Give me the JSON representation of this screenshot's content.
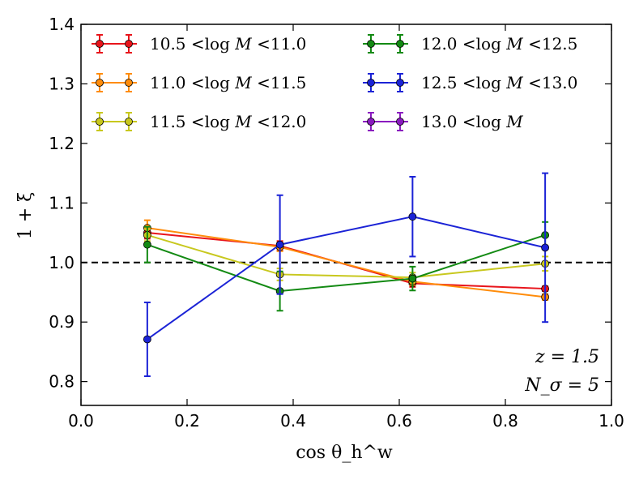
{
  "chart_data": {
    "type": "line",
    "title": "",
    "xlabel": "cos θ_h^w",
    "ylabel": "1 + ξ",
    "xlim": [
      0.0,
      1.0
    ],
    "ylim": [
      0.76,
      1.4
    ],
    "x_ticks": [
      0.0,
      0.2,
      0.4,
      0.6,
      0.8,
      1.0
    ],
    "x_tick_labels": [
      "0.0",
      "0.2",
      "0.4",
      "0.6",
      "0.8",
      "1.0"
    ],
    "y_ticks": [
      0.8,
      0.9,
      1.0,
      1.1,
      1.2,
      1.3,
      1.4
    ],
    "y_tick_labels": [
      "0.8",
      "0.9",
      "1.0",
      "1.1",
      "1.2",
      "1.3",
      "1.4"
    ],
    "reference_line": {
      "y": 1.0,
      "style": "dashed",
      "color": "#000000"
    },
    "annotations": [
      "z = 1.5",
      "N_σ = 5"
    ],
    "series": [
      {
        "name": "10.5 < log M < 11.0",
        "legend_parts": [
          "10.5",
          "<log",
          "M",
          "<11.0"
        ],
        "color": "#e8141b",
        "x": [
          0.125,
          0.375,
          0.625,
          0.875
        ],
        "y": [
          1.05,
          1.028,
          0.965,
          0.956
        ],
        "yerr": [
          0.01,
          0.008,
          0.006,
          0.004
        ]
      },
      {
        "name": "11.0 < log M < 11.5",
        "legend_parts": [
          "11.0",
          "<log",
          "M",
          "<11.5"
        ],
        "color": "#ff8c0a",
        "x": [
          0.125,
          0.375,
          0.625,
          0.875
        ],
        "y": [
          1.058,
          1.026,
          0.968,
          0.942
        ],
        "yerr": [
          0.013,
          0.007,
          0.006,
          0.005
        ]
      },
      {
        "name": "11.5 < log M < 12.0",
        "legend_parts": [
          "11.5",
          "<log",
          "M",
          "<12.0"
        ],
        "color": "#c8c81e",
        "x": [
          0.125,
          0.375,
          0.625,
          0.875
        ],
        "y": [
          1.046,
          0.98,
          0.975,
          0.998
        ],
        "yerr": [
          0.01,
          0.01,
          0.008,
          0.012
        ]
      },
      {
        "name": "12.0 < log M < 12.5",
        "legend_parts": [
          "12.0",
          "<log",
          "M",
          "<12.5"
        ],
        "color": "#138a13",
        "x": [
          0.125,
          0.375,
          0.625,
          0.875
        ],
        "y": [
          1.03,
          0.952,
          0.973,
          1.046
        ],
        "yerr": [
          0.03,
          0.033,
          0.02,
          0.022
        ]
      },
      {
        "name": "12.5 < log M < 13.0",
        "legend_parts": [
          "12.5",
          "<log",
          "M",
          "<13.0"
        ],
        "color": "#1b23d6",
        "x": [
          0.125,
          0.375,
          0.625,
          0.875
        ],
        "y": [
          0.871,
          1.03,
          1.077,
          1.025
        ],
        "yerr": [
          0.062,
          0.083,
          0.067,
          0.125
        ]
      },
      {
        "name": "13.0 < log M",
        "legend_parts": [
          "13.0",
          "<log",
          "M",
          ""
        ],
        "color": "#8a1bbf",
        "x": [],
        "y": [],
        "yerr": []
      }
    ]
  }
}
